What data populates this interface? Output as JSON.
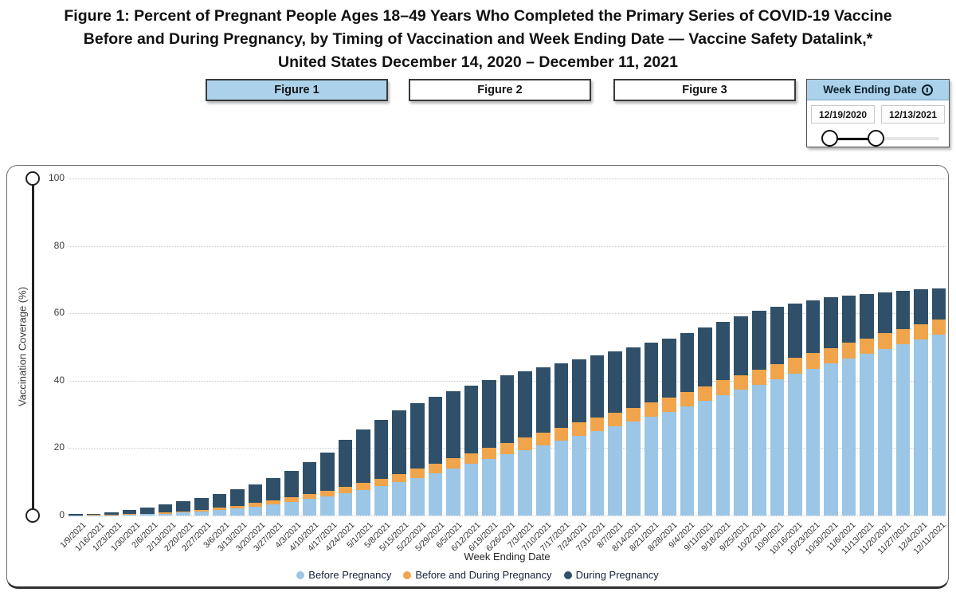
{
  "title": {
    "line1": "Figure 1: Percent of Pregnant People Ages 18–49 Years Who Completed the Primary Series of COVID-19 Vaccine",
    "line2": "Before and During Pregnancy, by Timing of Vaccination and Week Ending Date — Vaccine Safety Datalink,*",
    "line3": "United States December 14, 2020 – December 11, 2021"
  },
  "figure_tabs": [
    {
      "label": "Figure 1",
      "active": true
    },
    {
      "label": "Figure 2",
      "active": false
    },
    {
      "label": "Figure 3",
      "active": false
    }
  ],
  "date_filter": {
    "title": "Week Ending Date",
    "icon": "info-icon",
    "start_value": "12/19/2020",
    "end_value": "12/13/2021"
  },
  "colors": {
    "before_pregnancy": "#9bc6e6",
    "before_and_during": "#f0a44c",
    "during_pregnancy": "#2f5068",
    "accent_header_blue": "#abd2ea",
    "gridline": "#c8c8c8",
    "slider_black": "#111111"
  },
  "chart_data": {
    "type": "bar",
    "stacked": true,
    "xlabel": "Week Ending Date",
    "ylabel": "Vaccination Coverage (%)",
    "ylim": [
      0,
      100
    ],
    "yticks": [
      0,
      20,
      40,
      60,
      80,
      100
    ],
    "grid": "horizontal-dotted",
    "legend_position": "bottom",
    "categories": [
      "1/9/2021",
      "1/16/2021",
      "1/23/2021",
      "1/30/2021",
      "2/6/2021",
      "2/13/2021",
      "2/20/2021",
      "2/27/2021",
      "3/6/2021",
      "3/13/2021",
      "3/20/2021",
      "3/27/2021",
      "4/3/2021",
      "4/10/2021",
      "4/17/2021",
      "4/24/2021",
      "5/1/2021",
      "5/8/2021",
      "5/15/2021",
      "5/22/2021",
      "5/29/2021",
      "6/5/2021",
      "6/12/2021",
      "6/19/2021",
      "6/26/2021",
      "7/3/2021",
      "7/10/2021",
      "7/17/2021",
      "7/24/2021",
      "7/31/2021",
      "8/7/2021",
      "8/14/2021",
      "8/21/2021",
      "8/28/2021",
      "9/4/2021",
      "9/11/2021",
      "9/18/2021",
      "9/25/2021",
      "10/2/2021",
      "10/9/2021",
      "10/16/2021",
      "10/23/2021",
      "10/30/2021",
      "11/6/2021",
      "11/13/2021",
      "11/20/2021",
      "11/27/2021",
      "12/4/2021",
      "12/11/2021"
    ],
    "series": [
      {
        "name": "Before Pregnancy",
        "color": "#9bc6e6",
        "values": [
          0.1,
          0.1,
          0.1,
          0.2,
          0.4,
          0.6,
          0.9,
          1.2,
          1.6,
          2.1,
          2.7,
          3.4,
          4.1,
          4.9,
          5.7,
          6.6,
          7.6,
          8.7,
          9.9,
          11.2,
          12.5,
          13.9,
          15.3,
          16.7,
          18.1,
          19.5,
          20.9,
          22.3,
          23.7,
          25.1,
          26.5,
          27.9,
          29.3,
          30.8,
          32.4,
          34.0,
          35.7,
          37.3,
          38.9,
          40.5,
          42.1,
          43.6,
          45.1,
          46.6,
          48.0,
          49.5,
          50.8,
          52.2,
          53.6
        ]
      },
      {
        "name": "Before and During Pregnancy",
        "color": "#f0a44c",
        "values": [
          0.0,
          0.1,
          0.1,
          0.2,
          0.2,
          0.3,
          0.4,
          0.5,
          0.7,
          0.8,
          1.0,
          1.2,
          1.3,
          1.5,
          1.7,
          1.9,
          2.1,
          2.3,
          2.5,
          2.7,
          2.9,
          3.1,
          3.2,
          3.4,
          3.5,
          3.6,
          3.7,
          3.8,
          3.9,
          4.0,
          4.1,
          4.1,
          4.2,
          4.2,
          4.3,
          4.3,
          4.4,
          4.4,
          4.5,
          4.5,
          4.6,
          4.6,
          4.6,
          4.6,
          4.6,
          4.6,
          4.6,
          4.6,
          4.6
        ]
      },
      {
        "name": "During Pregnancy",
        "color": "#2f5068",
        "values": [
          0.3,
          0.4,
          0.8,
          1.2,
          1.8,
          2.4,
          3.0,
          3.6,
          4.1,
          4.8,
          5.5,
          6.4,
          7.8,
          9.4,
          11.4,
          13.9,
          15.8,
          17.4,
          18.8,
          19.5,
          19.9,
          20.0,
          20.1,
          20.0,
          19.9,
          19.7,
          19.4,
          19.1,
          18.8,
          18.4,
          18.1,
          17.9,
          17.7,
          17.6,
          17.4,
          17.5,
          17.4,
          17.5,
          17.3,
          16.9,
          16.3,
          15.7,
          15.0,
          14.1,
          13.2,
          12.2,
          11.3,
          10.3,
          9.3
        ]
      }
    ]
  }
}
